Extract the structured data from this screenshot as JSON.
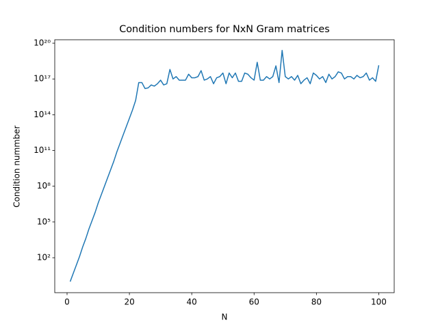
{
  "chart_data": {
    "type": "line",
    "title": "Condition numbers for NxN Gram matrices",
    "xlabel": "N",
    "ylabel": "Condition nummber",
    "yscale": "log",
    "color": "#1f77b4",
    "grid": false,
    "x": [
      1,
      2,
      3,
      4,
      5,
      6,
      7,
      8,
      9,
      10,
      11,
      12,
      13,
      14,
      15,
      16,
      17,
      18,
      19,
      20,
      21,
      22,
      23,
      24,
      25,
      26,
      27,
      28,
      29,
      30,
      31,
      32,
      33,
      34,
      35,
      36,
      37,
      38,
      39,
      40,
      41,
      42,
      43,
      44,
      45,
      46,
      47,
      48,
      49,
      50,
      51,
      52,
      53,
      54,
      55,
      56,
      57,
      58,
      59,
      60,
      61,
      62,
      63,
      64,
      65,
      66,
      67,
      68,
      69,
      70,
      71,
      72,
      73,
      74,
      75,
      76,
      77,
      78,
      79,
      80,
      81,
      82,
      83,
      84,
      85,
      86,
      87,
      88,
      89,
      90,
      91,
      92,
      93,
      94,
      95,
      96,
      97,
      98,
      99,
      100
    ],
    "values": [
      1,
      5,
      25,
      126,
      794,
      3981,
      25119,
      126000.0,
      631000.0,
      3980000.0,
      20000000.0,
      100000000.0,
      500000000.0,
      2510000000.0,
      12600000000.0,
      79400000000.0,
      398000000000.0,
      2000000000000.0,
      10000000000000.0,
      50000000000000.0,
      251000000000000.0,
      1580000000000000.0,
      5e+16,
      5e+16,
      1.58e+16,
      1.78e+16,
      3.16e+16,
      2.51e+16,
      3.98e+16,
      7.94e+16,
      3.16e+16,
      3.98e+16,
      6.31e+17,
      1e+17,
      1.58e+17,
      7.94e+16,
      7.94e+16,
      7.94e+16,
      2.51e+17,
      1.26e+17,
      1.26e+17,
      1.58e+17,
      5e+17,
      7.94e+16,
      1e+17,
      1.58e+17,
      3.98e+16,
      1.26e+17,
      1.58e+17,
      3.16e+17,
      3.98e+16,
      3.16e+17,
      1.26e+17,
      3.16e+17,
      6.31e+16,
      6.31e+16,
      3.16e+17,
      2.51e+17,
      1.26e+17,
      7.94e+16,
      2.51e+18,
      7.94e+16,
      7.94e+16,
      1.58e+17,
      1e+17,
      1.58e+17,
      1.26e+18,
      5e+16,
      2.51e+19,
      1.58e+17,
      1e+17,
      1.58e+17,
      7.94e+16,
      2e+17,
      3.98e+16,
      7.94e+16,
      1.26e+17,
      3.98e+16,
      3.16e+17,
      2e+17,
      1e+17,
      1.58e+17,
      5e+16,
      2.51e+17,
      1e+17,
      1.58e+17,
      3.98e+17,
      3.16e+17,
      1e+17,
      1.58e+17,
      1.58e+17,
      1e+17,
      2e+17,
      1.26e+17,
      1.58e+17,
      3.16e+17,
      7.94e+16,
      1.26e+17,
      6.31e+16,
      1.41e+18
    ],
    "xlim": [
      -3.95,
      104.95
    ],
    "xticks": [
      0,
      20,
      40,
      60,
      80,
      100
    ],
    "ylim": [
      0.117,
      1.95e+20
    ],
    "yticks": [
      {
        "value": 100,
        "label": "10²"
      },
      {
        "value": 100000,
        "label": "10⁵"
      },
      {
        "value": 100000000,
        "label": "10⁸"
      },
      {
        "value": 100000000000,
        "label": "10¹¹"
      },
      {
        "value": 100000000000000,
        "label": "10¹⁴"
      },
      {
        "value": 1e+17,
        "label": "10¹⁷"
      },
      {
        "value": 1e+20,
        "label": "10²⁰"
      }
    ]
  }
}
